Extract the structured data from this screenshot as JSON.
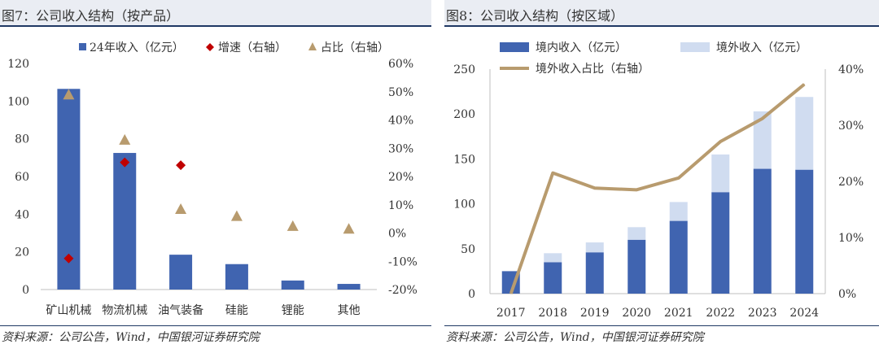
{
  "panels": [
    {
      "title": "图7：公司收入结构（按产品）",
      "source": "资料来源：公司公告，Wind，中国银河证券研究院"
    },
    {
      "title": "图8：公司收入结构（按区域）",
      "source": "资料来源：公司公告，Wind，中国银河证券研究院"
    }
  ],
  "chart_data": [
    {
      "type": "bar",
      "categories": [
        "矿山机械",
        "物流机械",
        "油气装备",
        "硅能",
        "锂能",
        "其他"
      ],
      "series": [
        {
          "name": "24年收入（亿元）",
          "type": "bar",
          "axis": "left",
          "color": "#4064b0",
          "values": [
            106.5,
            72.5,
            18.5,
            13.5,
            4.8,
            3.0
          ]
        },
        {
          "name": "增速（右轴）",
          "type": "scatter",
          "marker": "diamond",
          "axis": "right",
          "color": "#c00000",
          "values": [
            -9,
            25,
            24,
            null,
            null,
            null
          ]
        },
        {
          "name": "占比（右轴）",
          "type": "scatter",
          "marker": "triangle",
          "axis": "right",
          "color": "#b89b6e",
          "values": [
            49,
            33,
            8.5,
            6,
            2.5,
            1.5
          ]
        }
      ],
      "ylim": [
        0,
        120
      ],
      "yticks": [
        0,
        20,
        40,
        60,
        80,
        100,
        120
      ],
      "y2lim": [
        -20,
        60
      ],
      "y2ticks": [
        "-20%",
        "-10%",
        "0%",
        "10%",
        "20%",
        "30%",
        "40%",
        "50%",
        "60%"
      ],
      "legend": "top"
    },
    {
      "type": "bar",
      "stacked": true,
      "categories": [
        "2017",
        "2018",
        "2019",
        "2020",
        "2021",
        "2022",
        "2023",
        "2024"
      ],
      "series": [
        {
          "name": "境内收入（亿元）",
          "type": "bar",
          "axis": "left",
          "color": "#4064b0",
          "values": [
            25,
            35,
            46,
            60,
            81,
            113,
            139,
            138
          ]
        },
        {
          "name": "境外收入（亿元）",
          "type": "bar",
          "axis": "left",
          "color": "#d0dcf0",
          "values": [
            0,
            10,
            11,
            14,
            21,
            42,
            64,
            81
          ]
        },
        {
          "name": "境外收入占比（右轴）",
          "type": "line",
          "axis": "right",
          "color": "#b89b6e",
          "values": [
            0,
            21.5,
            18.8,
            18.5,
            20.6,
            27.1,
            31.2,
            37.3
          ]
        }
      ],
      "ylim": [
        0,
        250
      ],
      "yticks": [
        0,
        50,
        100,
        150,
        200,
        250
      ],
      "y2lim": [
        0,
        40
      ],
      "y2ticks": [
        "0%",
        "10%",
        "20%",
        "30%",
        "40%"
      ],
      "legend": "top"
    }
  ]
}
